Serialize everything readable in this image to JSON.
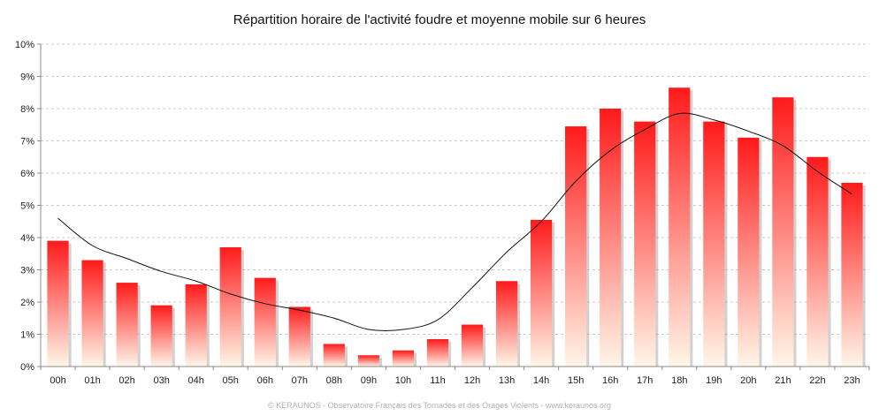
{
  "chart_data": {
    "type": "bar",
    "title": "Répartition horaire de l'activité foudre et moyenne mobile sur 6 heures",
    "xlabel": "",
    "ylabel": "",
    "categories": [
      "00h",
      "01h",
      "02h",
      "03h",
      "04h",
      "05h",
      "06h",
      "07h",
      "08h",
      "09h",
      "10h",
      "11h",
      "12h",
      "13h",
      "14h",
      "15h",
      "16h",
      "17h",
      "18h",
      "19h",
      "20h",
      "21h",
      "22h",
      "23h"
    ],
    "series": [
      {
        "type": "bar",
        "values": [
          3.9,
          3.3,
          2.6,
          1.9,
          2.55,
          3.7,
          2.75,
          1.85,
          0.7,
          0.35,
          0.5,
          0.85,
          1.3,
          2.65,
          4.55,
          7.45,
          8.0,
          7.6,
          8.65,
          7.6,
          7.1,
          8.35,
          6.5,
          5.7
        ]
      },
      {
        "type": "line",
        "values": [
          4.6,
          3.75,
          3.35,
          2.95,
          2.65,
          2.25,
          1.95,
          1.75,
          1.5,
          1.15,
          1.15,
          1.45,
          2.45,
          3.55,
          4.5,
          5.75,
          6.7,
          7.35,
          7.85,
          7.65,
          7.3,
          6.85,
          6.05,
          5.35
        ]
      }
    ],
    "ylim": [
      0,
      10
    ],
    "yticks": [
      "0%",
      "1%",
      "2%",
      "3%",
      "4%",
      "5%",
      "6%",
      "7%",
      "8%",
      "9%",
      "10%"
    ],
    "grid": true,
    "legend": "none",
    "colors": {
      "bar_top": "#ff1a1a",
      "bar_bottom": "#fff6e8",
      "line": "#111111",
      "grid": "#c8c8c8"
    }
  },
  "footer": "© KERAUNOS - Observatoire Français des Tornades et des Orages Violents - www.keraunos.org"
}
